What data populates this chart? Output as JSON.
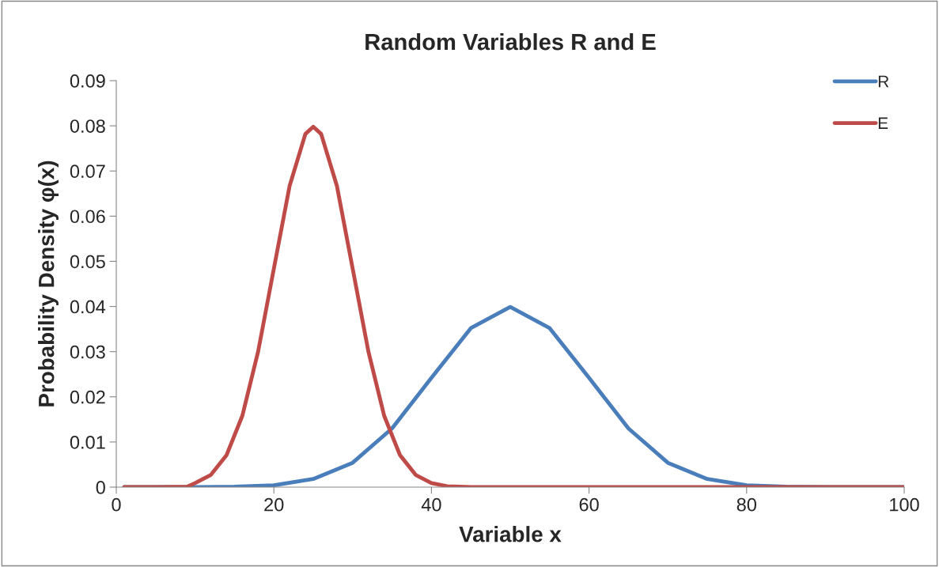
{
  "chart_data": {
    "type": "line",
    "title": "Random Variables R and E",
    "xlabel": "Variable x",
    "ylabel": "Probability Density φ(x)",
    "series": [
      {
        "name": "R",
        "color": "#4a7ebb",
        "x": [
          1,
          10,
          15,
          20,
          25,
          30,
          35,
          40,
          45,
          50,
          55,
          60,
          65,
          70,
          75,
          80,
          85,
          90,
          100
        ],
        "values": [
          0,
          0,
          0.0001,
          0.0004,
          0.0018,
          0.0054,
          0.013,
          0.0242,
          0.0352,
          0.0399,
          0.0352,
          0.0242,
          0.013,
          0.0054,
          0.0018,
          0.0004,
          0.0001,
          0,
          0
        ]
      },
      {
        "name": "E",
        "color": "#be4b48",
        "x": [
          1,
          5,
          9,
          10,
          12,
          14,
          16,
          18,
          20,
          22,
          24,
          25,
          26,
          28,
          30,
          32,
          34,
          36,
          38,
          40,
          42,
          45,
          50,
          100
        ],
        "values": [
          0,
          0,
          0.0001,
          0.0009,
          0.0027,
          0.0071,
          0.0158,
          0.03,
          0.0484,
          0.0667,
          0.0782,
          0.0798,
          0.0782,
          0.0667,
          0.0484,
          0.03,
          0.0158,
          0.0071,
          0.0027,
          0.0009,
          0.0002,
          0,
          0,
          0
        ]
      }
    ],
    "xlim": [
      0,
      100
    ],
    "xticks": [
      0,
      20,
      40,
      60,
      80,
      100
    ],
    "ylim": [
      0,
      0.09
    ],
    "yticks": [
      {
        "value": 0,
        "label": "0"
      },
      {
        "value": 0.01,
        "label": "0.01"
      },
      {
        "value": 0.02,
        "label": "0.02"
      },
      {
        "value": 0.03,
        "label": "0.03"
      },
      {
        "value": 0.04,
        "label": "0.04"
      },
      {
        "value": 0.05,
        "label": "0.05"
      },
      {
        "value": 0.06,
        "label": "0.06"
      },
      {
        "value": 0.07,
        "label": "0.07"
      },
      {
        "value": 0.08,
        "label": "0.08"
      },
      {
        "value": 0.09,
        "label": "0.09"
      }
    ],
    "grid": false,
    "legend": "top right",
    "marker": "none",
    "line_style": "solid"
  }
}
